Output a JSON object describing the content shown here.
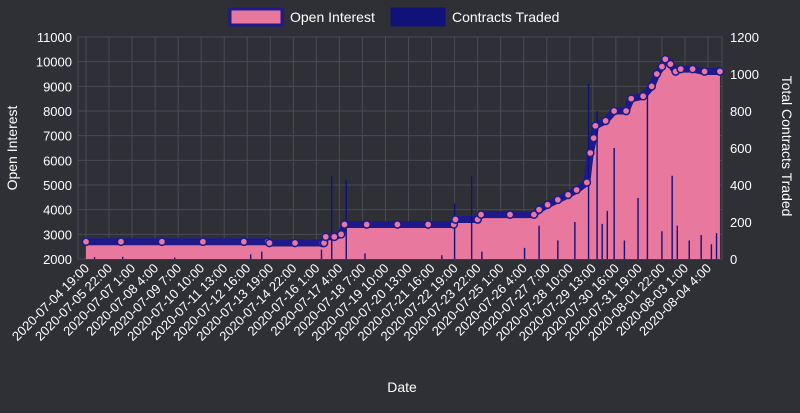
{
  "chart_data": {
    "type": "line",
    "title": "",
    "xlabel": "Date",
    "ylabel": "Open Interest",
    "y2label": "Total Contracts Traded",
    "ylim": [
      2000,
      11000
    ],
    "y2lim": [
      0,
      1200
    ],
    "grid": true,
    "legend_position": "top-center",
    "colors": {
      "background": "#2f2f36",
      "open_interest_fill": "#e8789e",
      "open_interest_line": "#1f1a8c",
      "contracts_line": "#11117a",
      "marker_fill": "#e8789e",
      "marker_stroke": "#1f1a8c"
    },
    "x_tick_labels": [
      "2020-07-04  19:00",
      "2020-07-05  22:00",
      "2020-07-07  1:00",
      "2020-07-08  4:00",
      "2020-07-09  7:00",
      "2020-07-10  10:00",
      "2020-07-11  13:00",
      "2020-07-12  16:00",
      "2020-07-13  19:00",
      "2020-07-14  22:00",
      "2020-07-16  1:00",
      "2020-07-17  4:00",
      "2020-07-18  7:00",
      "2020-07-19  10:00",
      "2020-07-20  13:00",
      "2020-07-21  16:00",
      "2020-07-22  19:00",
      "2020-07-23  22:00",
      "2020-07-25  1:00",
      "2020-07-26  4:00",
      "2020-07-27  7:00",
      "2020-07-28  10:00",
      "2020-07-29  13:00",
      "2020-07-30  16:00",
      "2020-07-31  19:00",
      "2020-08-01  22:00",
      "2020-08-03  1:00",
      "2020-08-04  4:00"
    ],
    "y_ticks": [
      2000,
      3000,
      4000,
      5000,
      6000,
      7000,
      8000,
      9000,
      10000,
      11000
    ],
    "y2_ticks": [
      0,
      200,
      400,
      600,
      800,
      1000,
      1200
    ],
    "series": [
      {
        "name": "Open Interest",
        "axis": "left",
        "style": "area",
        "points": [
          [
            "2020-07-04 19:00",
            2700
          ],
          [
            "2020-07-06 12:00",
            2700
          ],
          [
            "2020-07-08 12:00",
            2700
          ],
          [
            "2020-07-10 12:00",
            2700
          ],
          [
            "2020-07-12 12:00",
            2700
          ],
          [
            "2020-07-13 16:00",
            2700
          ],
          [
            "2020-07-13 18:00",
            2650
          ],
          [
            "2020-07-15 00:00",
            2650
          ],
          [
            "2020-07-16 08:00",
            2650
          ],
          [
            "2020-07-16 10:00",
            2650
          ],
          [
            "2020-07-16 12:00",
            2900
          ],
          [
            "2020-07-16 22:00",
            2900
          ],
          [
            "2020-07-17 06:00",
            3000
          ],
          [
            "2020-07-17 10:00",
            3400
          ],
          [
            "2020-07-18 12:00",
            3400
          ],
          [
            "2020-07-20 00:00",
            3400
          ],
          [
            "2020-07-21 12:00",
            3400
          ],
          [
            "2020-07-22 18:00",
            3400
          ],
          [
            "2020-07-22 20:00",
            3600
          ],
          [
            "2020-07-23 22:00",
            3600
          ],
          [
            "2020-07-24 02:00",
            3800
          ],
          [
            "2020-07-25 12:00",
            3800
          ],
          [
            "2020-07-26 16:00",
            3800
          ],
          [
            "2020-07-26 22:00",
            4000
          ],
          [
            "2020-07-27 08:00",
            4200
          ],
          [
            "2020-07-27 20:00",
            4400
          ],
          [
            "2020-07-28 08:00",
            4600
          ],
          [
            "2020-07-28 18:00",
            4800
          ],
          [
            "2020-07-29 06:00",
            5100
          ],
          [
            "2020-07-29 10:00",
            6300
          ],
          [
            "2020-07-29 14:00",
            6900
          ],
          [
            "2020-07-29 16:00",
            7400
          ],
          [
            "2020-07-30 04:00",
            7600
          ],
          [
            "2020-07-30 14:00",
            8000
          ],
          [
            "2020-07-31 04:00",
            8000
          ],
          [
            "2020-07-31 10:00",
            8500
          ],
          [
            "2020-08-01 00:00",
            8600
          ],
          [
            "2020-08-01 10:00",
            9000
          ],
          [
            "2020-08-01 16:00",
            9500
          ],
          [
            "2020-08-01 22:00",
            9800
          ],
          [
            "2020-08-02 02:00",
            10100
          ],
          [
            "2020-08-02 08:00",
            9900
          ],
          [
            "2020-08-02 14:00",
            9600
          ],
          [
            "2020-08-02 20:00",
            9700
          ],
          [
            "2020-08-03 10:00",
            9700
          ],
          [
            "2020-08-04 00:00",
            9600
          ],
          [
            "2020-08-04 18:00",
            9600
          ]
        ]
      },
      {
        "name": "Contracts Traded",
        "axis": "right",
        "style": "spikes",
        "points": [
          [
            "2020-07-05 05:00",
            10
          ],
          [
            "2020-07-06 14:00",
            12
          ],
          [
            "2020-07-09 03:00",
            8
          ],
          [
            "2020-07-12 20:00",
            25
          ],
          [
            "2020-07-13 09:00",
            40
          ],
          [
            "2020-07-16 07:00",
            50
          ],
          [
            "2020-07-16 19:00",
            450
          ],
          [
            "2020-07-17 12:00",
            430
          ],
          [
            "2020-07-18 10:00",
            30
          ],
          [
            "2020-07-22 04:00",
            20
          ],
          [
            "2020-07-22 19:00",
            300
          ],
          [
            "2020-07-23 15:00",
            450
          ],
          [
            "2020-07-24 03:00",
            40
          ],
          [
            "2020-07-26 05:00",
            60
          ],
          [
            "2020-07-26 22:00",
            180
          ],
          [
            "2020-07-27 20:00",
            100
          ],
          [
            "2020-07-28 16:00",
            200
          ],
          [
            "2020-07-29 08:00",
            950
          ],
          [
            "2020-07-29 18:00",
            800
          ],
          [
            "2020-07-30 00:00",
            190
          ],
          [
            "2020-07-30 06:00",
            260
          ],
          [
            "2020-07-30 14:00",
            600
          ],
          [
            "2020-07-31 02:00",
            100
          ],
          [
            "2020-07-31 18:00",
            330
          ],
          [
            "2020-08-01 05:00",
            890
          ],
          [
            "2020-08-01 22:00",
            150
          ],
          [
            "2020-08-02 10:00",
            450
          ],
          [
            "2020-08-02 16:00",
            180
          ],
          [
            "2020-08-03 06:00",
            100
          ],
          [
            "2020-08-03 20:00",
            130
          ],
          [
            "2020-08-04 08:00",
            80
          ],
          [
            "2020-08-04 14:00",
            140
          ]
        ]
      }
    ]
  }
}
